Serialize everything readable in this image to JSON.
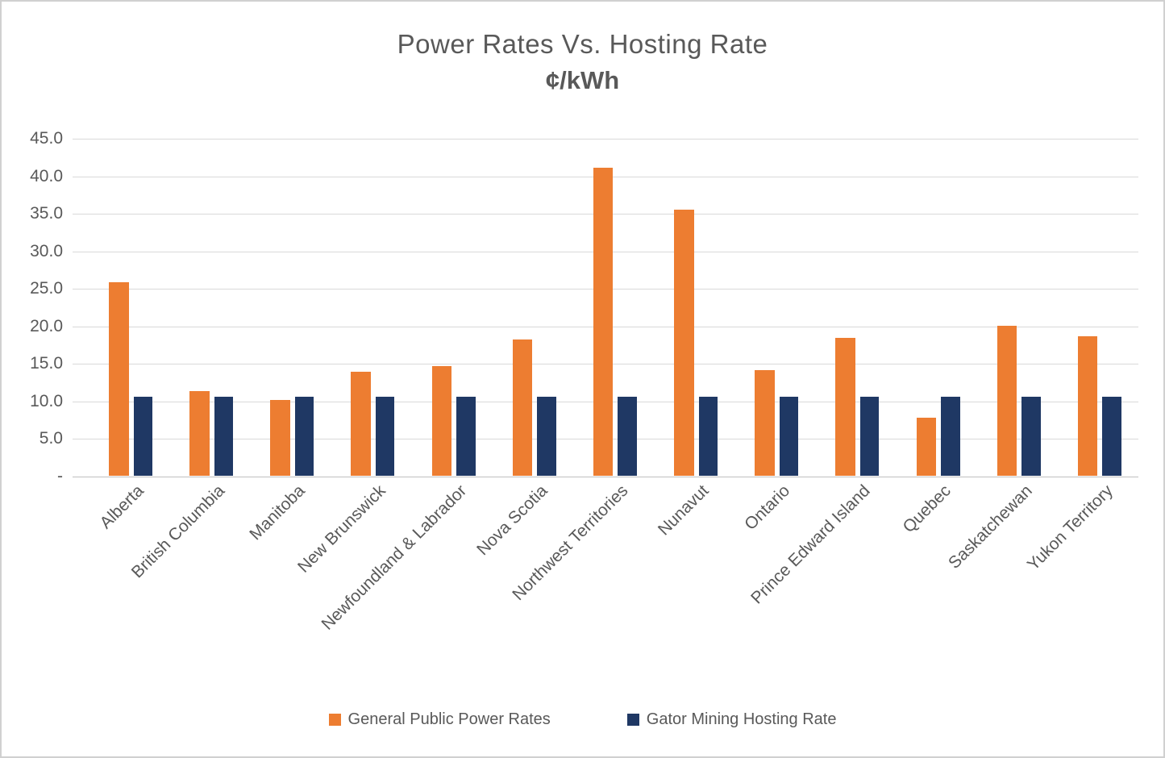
{
  "chart": {
    "title": "Power Rates Vs. Hosting Rate",
    "subtitle": "¢/kWh"
  },
  "chart_data": {
    "type": "bar",
    "title": "Power Rates Vs. Hosting Rate",
    "subtitle": "¢/kWh",
    "xlabel": "",
    "ylabel": "",
    "units": "¢/kWh",
    "grid": true,
    "legend_position": "bottom",
    "ylim": [
      0,
      45
    ],
    "ytick_step": 5,
    "ytick_labels": [
      "-",
      "5.0",
      "10.0",
      "15.0",
      "20.0",
      "25.0",
      "30.0",
      "35.0",
      "40.0",
      "45.0"
    ],
    "categories": [
      "Alberta",
      "British Columbia",
      "Manitoba",
      "New Brunswick",
      "Newfoundland & Labrador",
      "Nova Scotia",
      "Northwest Territories",
      "Nunavut",
      "Ontario",
      "Prince Edward Island",
      "Quebec",
      "Saskatchewan",
      "Yukon Territory"
    ],
    "series": [
      {
        "name": "General Public Power Rates",
        "color": "#ED7D31",
        "values": [
          25.8,
          11.3,
          10.1,
          13.9,
          14.6,
          18.2,
          41.0,
          35.4,
          14.1,
          18.4,
          7.7,
          20.0,
          18.6
        ]
      },
      {
        "name": "Gator Mining Hosting Rate",
        "color": "#1F3864",
        "values": [
          10.5,
          10.5,
          10.5,
          10.5,
          10.5,
          10.5,
          10.5,
          10.5,
          10.5,
          10.5,
          10.5,
          10.5,
          10.5
        ]
      }
    ]
  },
  "colors": {
    "text": "#595959",
    "gridline": "#D9D9D9",
    "axis_line": "#BFBFBF",
    "series_1": "#ED7D31",
    "series_2": "#1F3864",
    "frame_border": "#D0D0D0",
    "background": "#FFFFFF"
  }
}
